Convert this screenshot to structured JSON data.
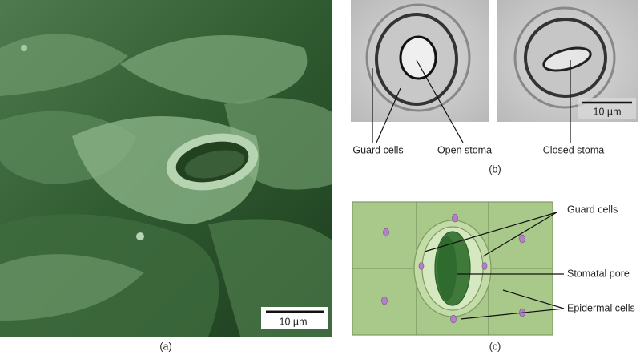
{
  "panel_a": {
    "label": "(a)",
    "scale_bar": "10 µm"
  },
  "panel_b": {
    "label": "(b)",
    "scale_bar": "10 µm",
    "callouts": [
      "Guard cells",
      "Open stoma",
      "Closed stoma"
    ]
  },
  "panel_c": {
    "label": "(c)",
    "callouts": [
      "Guard cells",
      "Stomatal pore",
      "Epidermal cells"
    ]
  }
}
